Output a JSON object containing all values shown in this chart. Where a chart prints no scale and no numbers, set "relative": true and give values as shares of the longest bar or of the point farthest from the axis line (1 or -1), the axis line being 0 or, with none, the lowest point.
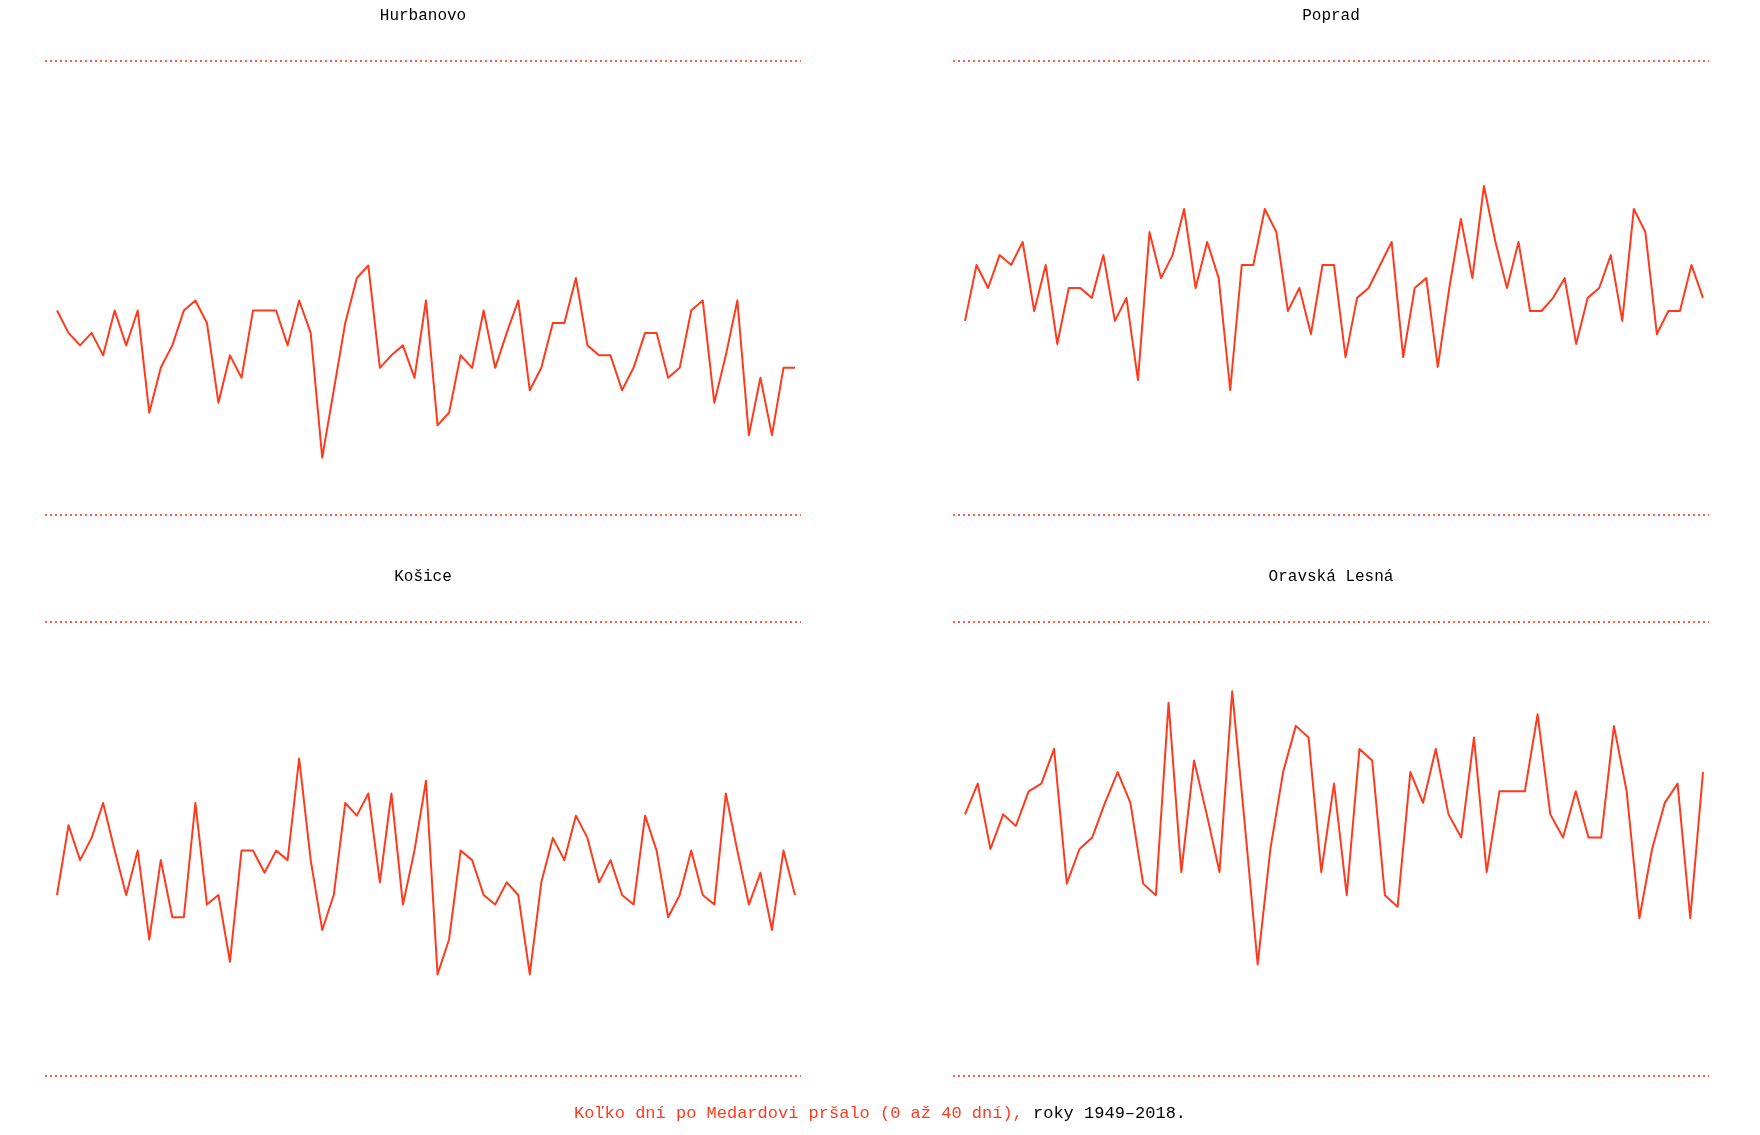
{
  "chart_data": [
    {
      "type": "line",
      "title": "Hurbanovo",
      "relative": true,
      "categories": [
        null,
        null,
        null,
        null,
        null,
        null,
        null,
        null,
        null,
        null,
        null,
        null,
        null,
        null,
        null,
        null,
        null,
        null,
        null,
        null,
        null,
        null,
        null,
        null,
        null,
        null,
        null,
        null,
        null,
        null,
        null,
        null,
        null,
        null,
        null,
        null,
        null,
        null,
        null,
        null,
        null,
        null,
        null,
        null,
        null,
        null,
        null,
        null,
        null,
        null,
        null,
        null,
        null,
        null,
        null,
        null,
        null,
        null,
        null,
        null,
        null,
        null,
        null,
        null,
        null
      ],
      "values": [
        0.82,
        0.73,
        0.68,
        0.73,
        0.64,
        0.82,
        0.68,
        0.82,
        0.41,
        0.59,
        0.68,
        0.82,
        0.86,
        0.77,
        0.45,
        0.64,
        0.55,
        0.82,
        0.82,
        0.82,
        0.68,
        0.86,
        0.73,
        0.23,
        0.5,
        0.77,
        0.95,
        1,
        0.59,
        0.64,
        0.68,
        0.55,
        0.86,
        0.36,
        0.41,
        0.64,
        0.59,
        0.82,
        0.59,
        0.73,
        0.86,
        0.5,
        0.59,
        0.77,
        0.77,
        0.95,
        0.68,
        0.64,
        0.64,
        0.5,
        0.59,
        0.73,
        0.73,
        0.55,
        0.59,
        0.82,
        0.86,
        0.45,
        0.64,
        0.86,
        0.32,
        0.55,
        0.32,
        0.59,
        0.59
      ],
      "color": "#ff3b1f",
      "ref_lines": [
        {
          "axis": "y",
          "value": 0,
          "color": "#ff5a4a",
          "line_style": "dotted"
        },
        {
          "axis": "y",
          "value": 1.82,
          "color": "#ff5a4a",
          "line_style": "dotted"
        }
      ]
    },
    {
      "type": "line",
      "title": "Poprad",
      "relative": true,
      "categories": [
        null,
        null,
        null,
        null,
        null,
        null,
        null,
        null,
        null,
        null,
        null,
        null,
        null,
        null,
        null,
        null,
        null,
        null,
        null,
        null,
        null,
        null,
        null,
        null,
        null,
        null,
        null,
        null,
        null,
        null,
        null,
        null,
        null,
        null,
        null,
        null,
        null,
        null,
        null,
        null,
        null,
        null,
        null,
        null,
        null,
        null,
        null,
        null,
        null,
        null,
        null,
        null,
        null,
        null,
        null,
        null,
        null,
        null,
        null,
        null,
        null,
        null,
        null,
        null,
        null
      ],
      "values": [
        0.59,
        0.76,
        0.69,
        0.79,
        0.76,
        0.83,
        0.62,
        0.76,
        0.52,
        0.69,
        0.69,
        0.66,
        0.79,
        0.59,
        0.66,
        0.41,
        0.86,
        0.72,
        0.79,
        0.93,
        0.69,
        0.83,
        0.72,
        0.38,
        0.76,
        0.76,
        0.93,
        0.86,
        0.62,
        0.69,
        0.55,
        0.76,
        0.76,
        0.48,
        0.66,
        0.69,
        0.76,
        0.83,
        0.48,
        0.69,
        0.72,
        0.45,
        0.69,
        0.9,
        0.72,
        1,
        0.83,
        0.69,
        0.83,
        0.62,
        0.62,
        0.66,
        0.72,
        0.52,
        0.66,
        0.69,
        0.79,
        0.59,
        0.93,
        0.86,
        0.55,
        0.62,
        0.62,
        0.76,
        0.66
      ],
      "color": "#ff3b1f",
      "ref_lines": [
        {
          "axis": "y",
          "value": 0,
          "color": "#ff5a4a",
          "line_style": "dotted"
        },
        {
          "axis": "y",
          "value": 1.38,
          "color": "#ff5a4a",
          "line_style": "dotted"
        }
      ]
    },
    {
      "type": "line",
      "title": "Košice",
      "relative": true,
      "categories": [
        null,
        null,
        null,
        null,
        null,
        null,
        null,
        null,
        null,
        null,
        null,
        null,
        null,
        null,
        null,
        null,
        null,
        null,
        null,
        null,
        null,
        null,
        null,
        null,
        null,
        null,
        null,
        null,
        null,
        null,
        null,
        null,
        null,
        null,
        null,
        null,
        null,
        null,
        null,
        null,
        null,
        null,
        null,
        null,
        null,
        null,
        null,
        null,
        null,
        null,
        null,
        null,
        null,
        null,
        null,
        null,
        null,
        null,
        null,
        null,
        null,
        null,
        null,
        null,
        null
      ],
      "values": [
        0.57,
        0.79,
        0.68,
        0.75,
        0.86,
        0.71,
        0.57,
        0.71,
        0.43,
        0.68,
        0.5,
        0.5,
        0.86,
        0.54,
        0.57,
        0.36,
        0.71,
        0.71,
        0.64,
        0.71,
        0.68,
        1,
        0.68,
        0.46,
        0.57,
        0.86,
        0.82,
        0.89,
        0.61,
        0.89,
        0.54,
        0.71,
        0.93,
        0.32,
        0.43,
        0.71,
        0.68,
        0.57,
        0.54,
        0.61,
        0.57,
        0.32,
        0.61,
        0.75,
        0.68,
        0.82,
        0.75,
        0.61,
        0.68,
        0.57,
        0.54,
        0.82,
        0.71,
        0.5,
        0.57,
        0.71,
        0.57,
        0.54,
        0.89,
        0.71,
        0.54,
        0.64,
        0.46,
        0.71,
        0.57
      ],
      "color": "#ff3b1f",
      "ref_lines": [
        {
          "axis": "y",
          "value": 0,
          "color": "#ff5a4a",
          "line_style": "dotted"
        },
        {
          "axis": "y",
          "value": 1.43,
          "color": "#ff5a4a",
          "line_style": "dotted"
        }
      ]
    },
    {
      "type": "line",
      "title": "Oravská Lesná",
      "relative": true,
      "categories": [
        null,
        null,
        null,
        null,
        null,
        null,
        null,
        null,
        null,
        null,
        null,
        null,
        null,
        null,
        null,
        null,
        null,
        null,
        null,
        null,
        null,
        null,
        null,
        null,
        null,
        null,
        null,
        null,
        null,
        null,
        null,
        null,
        null,
        null,
        null,
        null,
        null,
        null,
        null,
        null,
        null,
        null,
        null,
        null,
        null,
        null,
        null,
        null,
        null,
        null,
        null,
        null,
        null,
        null,
        null,
        null,
        null,
        null,
        null
      ],
      "values": [
        0.68,
        0.76,
        0.59,
        0.68,
        0.65,
        0.74,
        0.76,
        0.85,
        0.5,
        0.59,
        0.62,
        0.71,
        0.79,
        0.71,
        0.5,
        0.47,
        0.97,
        0.53,
        0.82,
        0.68,
        0.53,
        1,
        0.65,
        0.29,
        0.59,
        0.79,
        0.91,
        0.88,
        0.53,
        0.76,
        0.47,
        0.85,
        0.82,
        0.47,
        0.44,
        0.79,
        0.71,
        0.85,
        0.68,
        0.62,
        0.88,
        0.53,
        0.74,
        0.74,
        0.74,
        0.94,
        0.68,
        0.62,
        0.74,
        0.62,
        0.62,
        0.91,
        0.74,
        0.41,
        0.59,
        0.71,
        0.76,
        0.41,
        0.79
      ],
      "color": "#ff3b1f",
      "ref_lines": [
        {
          "axis": "y",
          "value": 0,
          "color": "#ff5a4a",
          "line_style": "dotted"
        },
        {
          "axis": "y",
          "value": 1.18,
          "color": "#ff5a4a",
          "line_style": "dotted"
        }
      ],
      "annotations": [
        "Koľko dní po Medardovi pršalo (0 až 40 dní),",
        "roky 1949–2018."
      ]
    }
  ]
}
